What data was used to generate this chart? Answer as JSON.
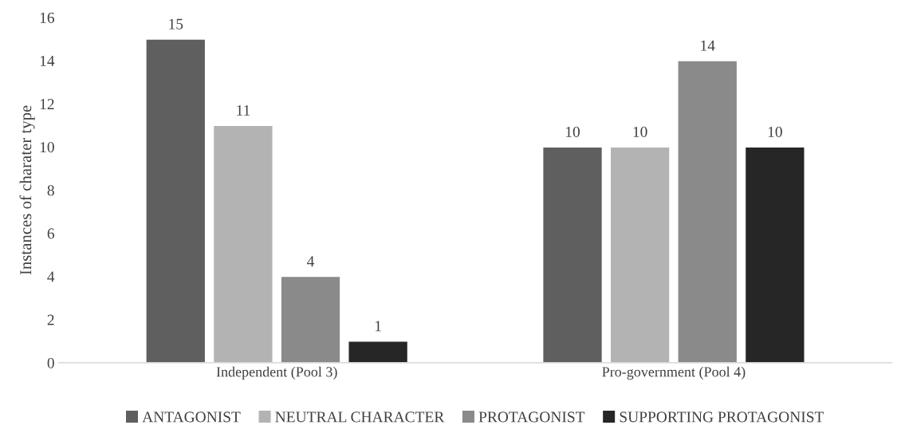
{
  "chart_data": {
    "type": "bar",
    "ylabel": "Instances of charater type",
    "categories": [
      "Independent (Pool 3)",
      "Pro-government (Pool 4)"
    ],
    "series": [
      {
        "name": "ANTAGONIST",
        "color": "#5f5f5f",
        "values": [
          15,
          10
        ]
      },
      {
        "name": "NEUTRAL CHARACTER",
        "color": "#b3b3b3",
        "values": [
          11,
          10
        ]
      },
      {
        "name": "PROTAGONIST",
        "color": "#8a8a8a",
        "values": [
          4,
          14
        ]
      },
      {
        "name": "SUPPORTING PROTAGONIST",
        "color": "#262626",
        "values": [
          1,
          10
        ]
      }
    ],
    "ylim": [
      0,
      16
    ],
    "yticks": [
      0,
      2,
      4,
      6,
      8,
      10,
      12,
      14,
      16
    ],
    "data_labels": true,
    "grid": false,
    "legend": "bottom"
  }
}
